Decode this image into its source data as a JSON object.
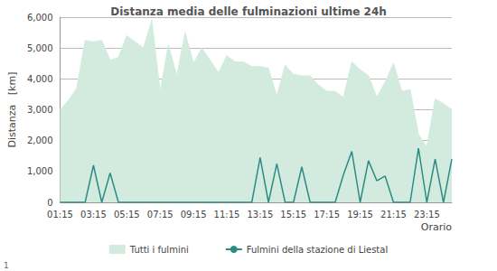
{
  "chart_data": {
    "type": "line",
    "title": "Distanza media delle fulminazioni ultime 24h",
    "x_label": "Orario",
    "y_label": "Distanza   [km]",
    "annotation": "1",
    "categories": [
      "01:15",
      null,
      null,
      null,
      "03:15",
      null,
      null,
      null,
      "05:15",
      null,
      null,
      null,
      "07:15",
      null,
      null,
      null,
      "09:15",
      null,
      null,
      null,
      "11:15",
      null,
      null,
      null,
      "13:15",
      null,
      null,
      null,
      "15:15",
      null,
      null,
      null,
      "17:15",
      null,
      null,
      null,
      "19:15",
      null,
      null,
      null,
      "21:15",
      null,
      null,
      null,
      "23:15",
      null,
      null,
      null
    ],
    "series": [
      {
        "name": "Tutti i fulmini",
        "type": "area",
        "color": "#d3ebdf",
        "values": [
          3000,
          3300,
          3700,
          5250,
          5200,
          5250,
          4600,
          4700,
          5400,
          5200,
          5000,
          5900,
          3600,
          5100,
          4100,
          5500,
          4500,
          5000,
          4600,
          4200,
          4750,
          4550,
          4550,
          4400,
          4400,
          4350,
          3450,
          4450,
          4150,
          4100,
          4100,
          3800,
          3600,
          3600,
          3400,
          4550,
          4300,
          4100,
          3400,
          3900,
          4500,
          3600,
          3650,
          2200,
          1800,
          3350,
          3200,
          3000
        ]
      },
      {
        "name": "Fulmini della stazione di Liestal",
        "type": "line",
        "color": "#2e8b84",
        "values": [
          0,
          0,
          0,
          0,
          1200,
          0,
          950,
          0,
          0,
          0,
          0,
          0,
          0,
          0,
          0,
          0,
          0,
          0,
          0,
          0,
          0,
          0,
          0,
          0,
          1450,
          0,
          1250,
          0,
          0,
          1150,
          0,
          0,
          0,
          0,
          900,
          1650,
          0,
          1350,
          700,
          850,
          0,
          0,
          0,
          1750,
          0,
          1400,
          0,
          1400
        ]
      }
    ],
    "ylim": [
      0,
      6000
    ],
    "yticks": [
      0,
      1000,
      2000,
      3000,
      4000,
      5000,
      6000
    ],
    "grid": true,
    "legend": "bottom"
  }
}
